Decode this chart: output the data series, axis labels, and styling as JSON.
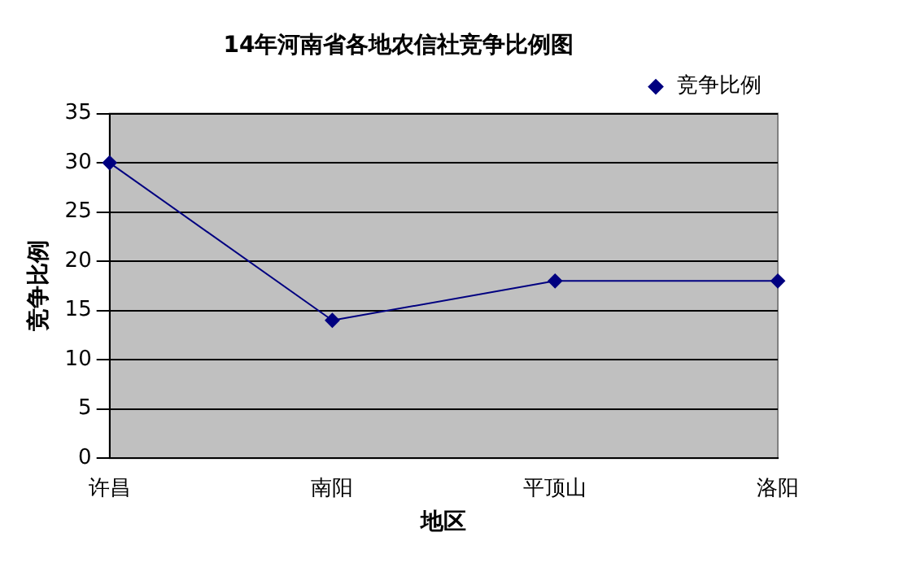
{
  "chart_data": {
    "type": "line",
    "title": "14年河南省各地农信社竞争比例图",
    "xlabel": "地区",
    "ylabel": "竞争比例",
    "categories": [
      "许昌",
      "南阳",
      "平顶山",
      "洛阳"
    ],
    "series": [
      {
        "name": "竞争比例",
        "color": "#000080",
        "values": [
          30,
          14,
          18,
          18
        ]
      }
    ],
    "ylim": [
      0,
      35
    ],
    "yticks": [
      0,
      5,
      10,
      15,
      20,
      25,
      30,
      35
    ],
    "grid": "y",
    "legend": "top right",
    "marker": "diamond",
    "line_style": "solid"
  }
}
